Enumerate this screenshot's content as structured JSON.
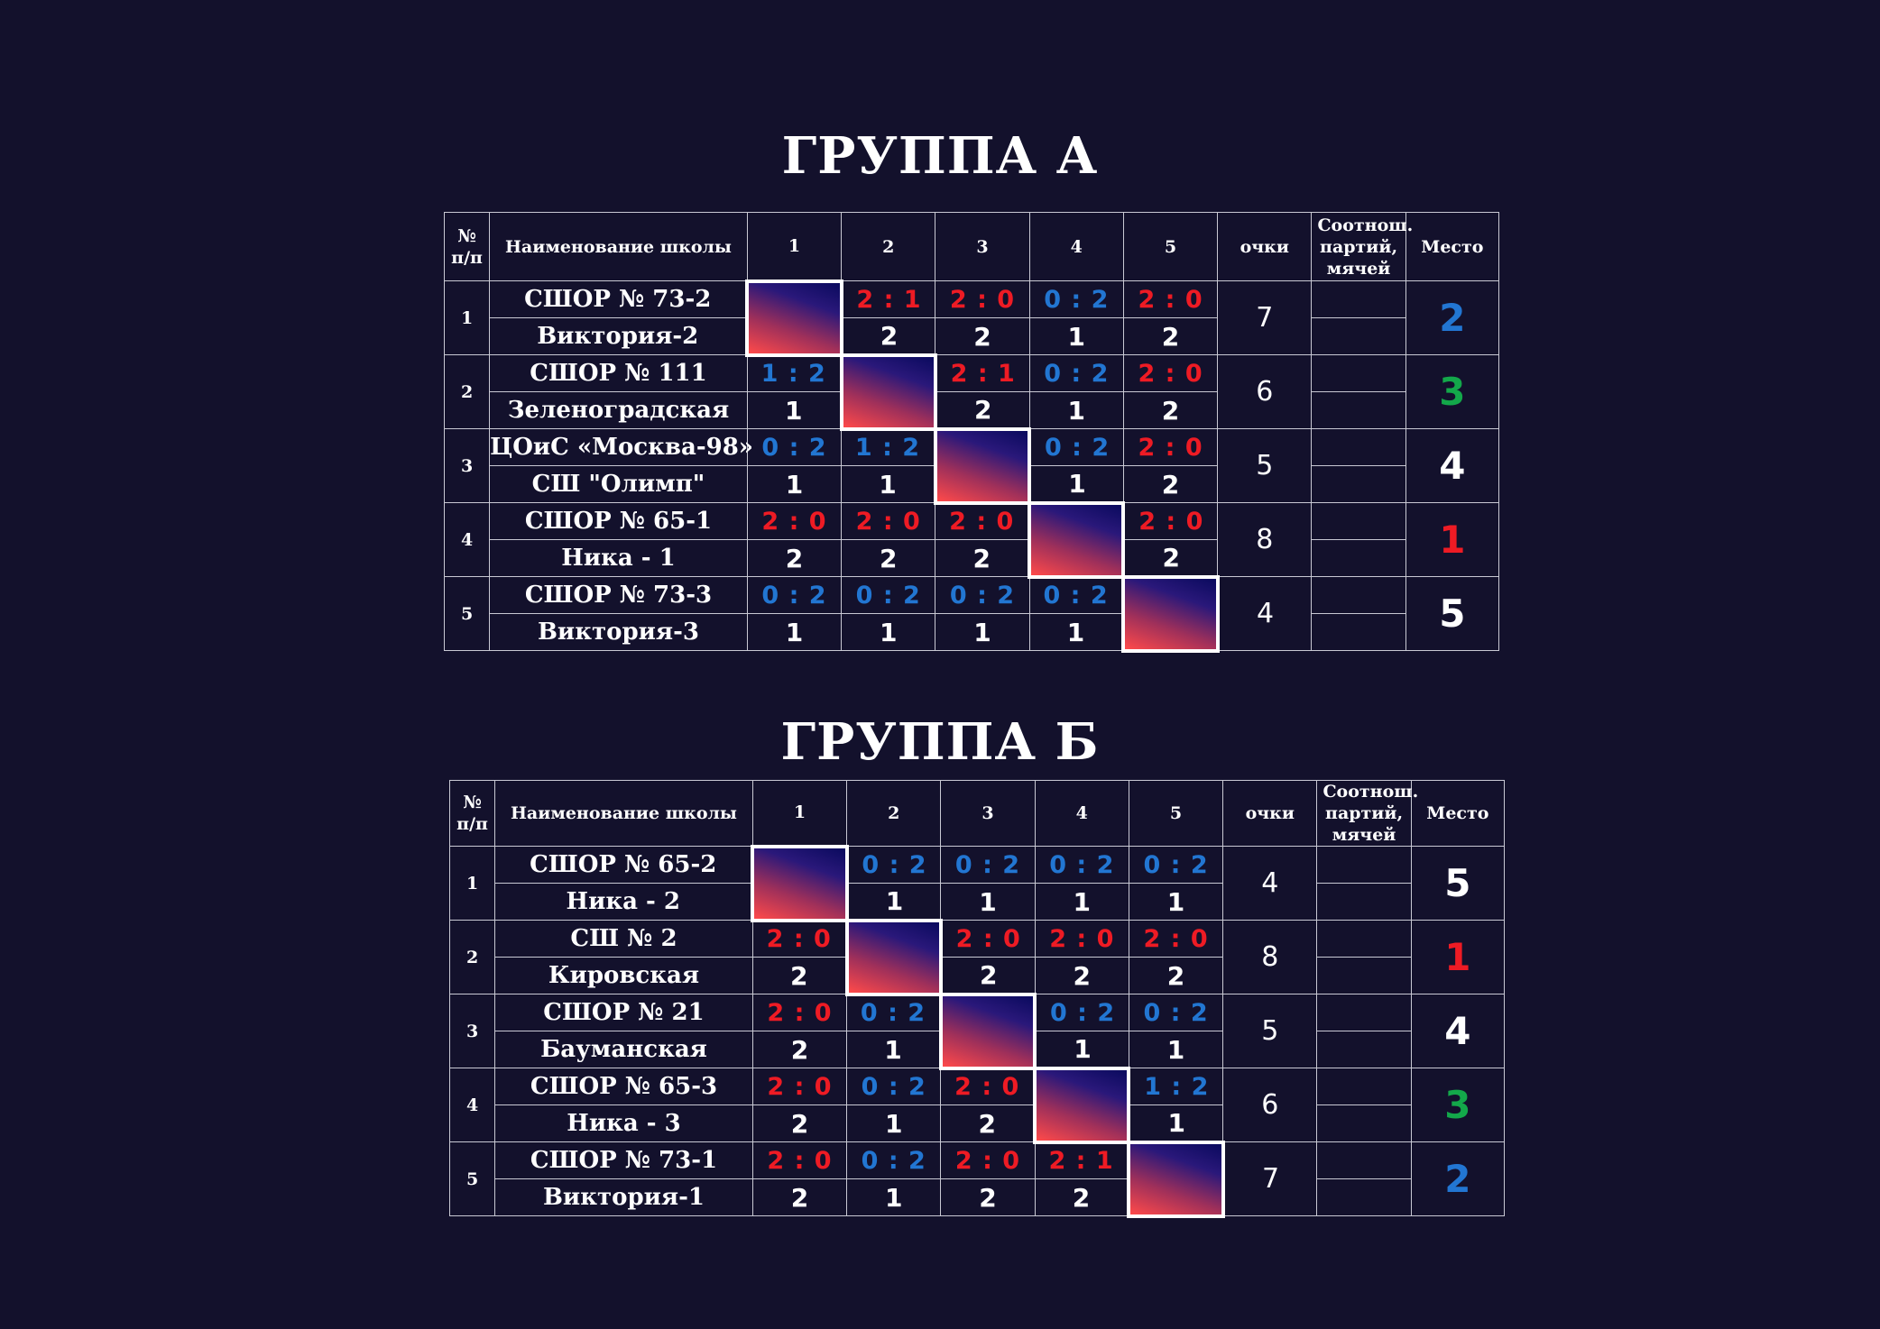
{
  "groups": [
    {
      "title": "ГРУППА А",
      "headers": {
        "num": "№ п/п",
        "name": "Наименование школы",
        "cols": [
          "1",
          "2",
          "3",
          "4",
          "5"
        ],
        "points": "очки",
        "ratio": "Соотнош. партий, мячей",
        "place": "Место"
      },
      "rows": [
        {
          "num": "1",
          "name1": "СШОР № 73-2",
          "name2": "Виктория-2",
          "scores": [
            null,
            "2 : 1",
            "2 : 0",
            "0 : 2",
            "2 : 0"
          ],
          "points": [
            null,
            "2",
            "2",
            "1",
            "2"
          ],
          "total": "7",
          "place": "2",
          "place_color": "#2276d2"
        },
        {
          "num": "2",
          "name1": "СШОР № 111",
          "name2": "Зеленоградская",
          "scores": [
            "1 : 2",
            null,
            "2 : 1",
            "0 : 2",
            "2 : 0"
          ],
          "points": [
            "1",
            null,
            "2",
            "1",
            "2"
          ],
          "total": "6",
          "place": "3",
          "place_color": "#13a84a"
        },
        {
          "num": "3",
          "name1": "ЦОиС «Москва-98»",
          "name2": "СШ \"Олимп\"",
          "scores": [
            "0 : 2",
            "1 : 2",
            null,
            "0 : 2",
            "2 : 0"
          ],
          "points": [
            "1",
            "1",
            null,
            "1",
            "2"
          ],
          "total": "5",
          "place": "4",
          "place_color": "#ffffff"
        },
        {
          "num": "4",
          "name1": "СШОР № 65-1",
          "name2": "Ника - 1",
          "scores": [
            "2 : 0",
            "2 : 0",
            "2 : 0",
            null,
            "2 : 0"
          ],
          "points": [
            "2",
            "2",
            "2",
            null,
            "2"
          ],
          "total": "8",
          "place": "1",
          "place_color": "#ee1b24"
        },
        {
          "num": "5",
          "name1": "СШОР № 73-3",
          "name2": "Виктория-3",
          "scores": [
            "0 : 2",
            "0 : 2",
            "0 : 2",
            "0 : 2",
            null
          ],
          "points": [
            "1",
            "1",
            "1",
            "1",
            null
          ],
          "total": "4",
          "place": "5",
          "place_color": "#ffffff"
        }
      ]
    },
    {
      "title": "ГРУППА Б",
      "headers": {
        "num": "№ п/п",
        "name": "Наименование школы",
        "cols": [
          "1",
          "2",
          "3",
          "4",
          "5"
        ],
        "points": "очки",
        "ratio": "Соотнош. партий, мячей",
        "place": "Место"
      },
      "rows": [
        {
          "num": "1",
          "name1": "СШОР № 65-2",
          "name2": "Ника - 2",
          "scores": [
            null,
            "0 : 2",
            "0 : 2",
            "0 : 2",
            "0 : 2"
          ],
          "points": [
            null,
            "1",
            "1",
            "1",
            "1"
          ],
          "total": "4",
          "place": "5",
          "place_color": "#ffffff"
        },
        {
          "num": "2",
          "name1": "СШ  №  2",
          "name2": "Кировская",
          "scores": [
            "2 : 0",
            null,
            "2 : 0",
            "2 : 0",
            "2 : 0"
          ],
          "points": [
            "2",
            null,
            "2",
            "2",
            "2"
          ],
          "total": "8",
          "place": "1",
          "place_color": "#ee1b24"
        },
        {
          "num": "3",
          "name1": "СШОР № 21",
          "name2": "Бауманская",
          "scores": [
            "2 : 0",
            "0 : 2",
            null,
            "0 : 2",
            "0 : 2"
          ],
          "points": [
            "2",
            "1",
            null,
            "1",
            "1"
          ],
          "total": "5",
          "place": "4",
          "place_color": "#ffffff"
        },
        {
          "num": "4",
          "name1": "СШОР № 65-3",
          "name2": "Ника - 3",
          "scores": [
            "2 : 0",
            "0 : 2",
            "2 : 0",
            null,
            "1 : 2"
          ],
          "points": [
            "2",
            "1",
            "2",
            null,
            "1"
          ],
          "total": "6",
          "place": "3",
          "place_color": "#13a84a"
        },
        {
          "num": "5",
          "name1": "СШОР № 73-1",
          "name2": "Виктория-1",
          "scores": [
            "2 : 0",
            "0 : 2",
            "2 : 0",
            "2 : 1",
            null
          ],
          "points": [
            "2",
            "1",
            "2",
            "2",
            null
          ],
          "total": "7",
          "place": "2",
          "place_color": "#2276d2"
        }
      ]
    }
  ],
  "colors": {
    "background": "#13112c",
    "win": "#ee1b24",
    "loss": "#2276d2",
    "third": "#13a84a",
    "text": "#ffffff"
  }
}
